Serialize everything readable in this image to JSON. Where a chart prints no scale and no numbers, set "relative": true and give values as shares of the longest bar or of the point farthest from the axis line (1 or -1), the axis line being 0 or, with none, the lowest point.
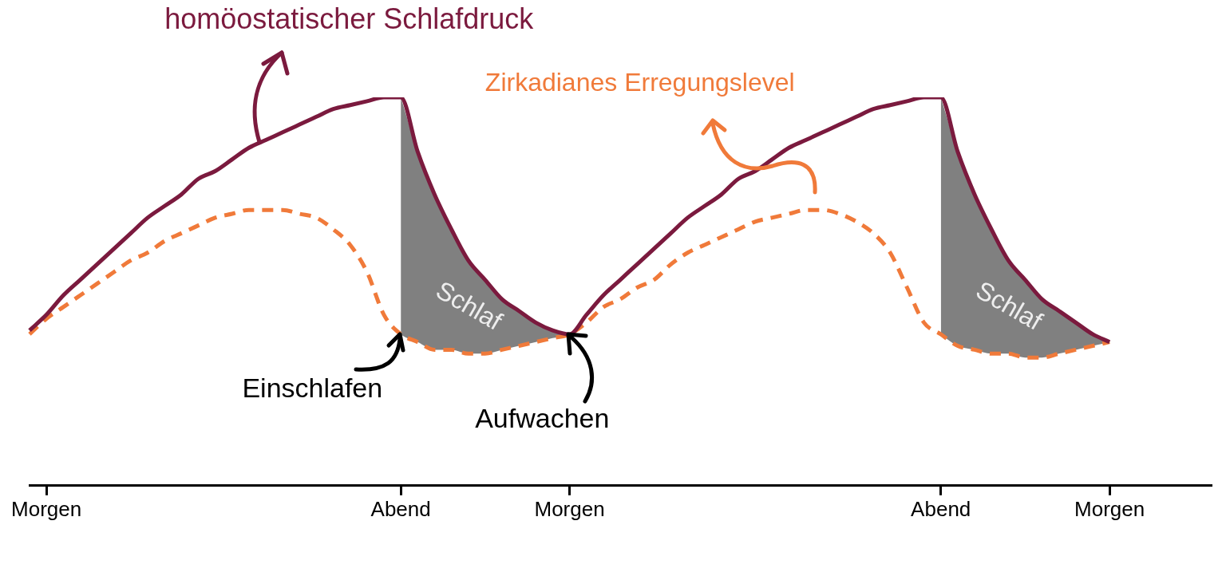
{
  "chart_data": {
    "type": "line",
    "relative": true,
    "legend": false,
    "grid": false,
    "marker": "none",
    "categories": [
      null,
      "Morgen",
      null,
      null,
      null,
      null,
      null,
      null,
      null,
      null,
      null,
      null,
      null,
      null,
      null,
      null,
      null,
      null,
      null,
      null,
      null,
      null,
      "Abend",
      null,
      null,
      null,
      null,
      null,
      null,
      null,
      null,
      null,
      "Morgen",
      null,
      null,
      null,
      null,
      null,
      null,
      null,
      null,
      null,
      null,
      null,
      null,
      null,
      null,
      null,
      null,
      null,
      null,
      null,
      null,
      null,
      "Abend",
      null,
      null,
      null,
      null,
      null,
      null,
      null,
      null,
      null,
      "Morgen",
      null,
      null,
      null,
      null,
      null,
      null
    ],
    "annotations": [
      "Einschlafen",
      "Aufwachen"
    ],
    "series": [
      {
        "name": "homöostatischer Schlafdruck",
        "color": "#7b1a3e",
        "line_style": "solid",
        "values": [
          0.4,
          0.44,
          0.49,
          0.53,
          0.57,
          0.61,
          0.65,
          0.69,
          0.72,
          0.75,
          0.79,
          0.81,
          0.84,
          0.87,
          0.89,
          0.91,
          0.93,
          0.95,
          0.97,
          0.98,
          0.99,
          1.0,
          1.0,
          0.86,
          0.75,
          0.66,
          0.58,
          0.53,
          0.48,
          0.45,
          0.42,
          0.4,
          0.39,
          0.44,
          0.49,
          0.53,
          0.57,
          0.61,
          0.65,
          0.69,
          0.72,
          0.75,
          0.79,
          0.81,
          0.84,
          0.87,
          0.89,
          0.91,
          0.93,
          0.95,
          0.97,
          0.98,
          0.99,
          1.0,
          1.0,
          0.86,
          0.75,
          0.66,
          0.58,
          0.53,
          0.48,
          0.45,
          0.42,
          0.39,
          0.37,
          null,
          null,
          null,
          null,
          null,
          null
        ]
      },
      {
        "name": "Zirkadianes Erregungslevel",
        "color": "#f07a3a",
        "line_style": "dashed",
        "values": [
          0.39,
          0.43,
          0.46,
          0.49,
          0.52,
          0.55,
          0.58,
          0.6,
          0.63,
          0.65,
          0.67,
          0.69,
          0.7,
          0.71,
          0.71,
          0.71,
          0.7,
          0.69,
          0.66,
          0.62,
          0.55,
          0.44,
          0.39,
          0.37,
          0.35,
          0.35,
          0.34,
          0.34,
          0.35,
          0.36,
          0.37,
          0.38,
          0.39,
          0.42,
          0.46,
          0.48,
          0.51,
          0.53,
          0.57,
          0.6,
          0.62,
          0.64,
          0.66,
          0.68,
          0.69,
          0.7,
          0.71,
          0.71,
          0.7,
          0.68,
          0.65,
          0.6,
          0.51,
          0.42,
          0.39,
          0.36,
          0.35,
          0.34,
          0.34,
          0.33,
          0.33,
          0.34,
          0.35,
          0.36,
          0.37,
          null,
          null,
          null,
          null,
          null,
          null
        ]
      },
      {
        "type": "area",
        "name": "Schlaf",
        "color": "#808080",
        "values": [
          null,
          null,
          null,
          null,
          null,
          null,
          null,
          null,
          null,
          null,
          null,
          null,
          null,
          null,
          null,
          null,
          null,
          null,
          null,
          null,
          null,
          null,
          1.0,
          0.86,
          0.75,
          0.66,
          0.58,
          0.53,
          0.48,
          0.45,
          0.42,
          0.4,
          0.39,
          null,
          null,
          null,
          null,
          null,
          null,
          null,
          null,
          null,
          null,
          null,
          null,
          null,
          null,
          null,
          null,
          null,
          null,
          null,
          null,
          null,
          1.0,
          0.86,
          0.75,
          0.66,
          0.58,
          0.53,
          0.48,
          0.45,
          0.42,
          0.39,
          0.37,
          null,
          null,
          null,
          null,
          null,
          null
        ]
      }
    ]
  }
}
